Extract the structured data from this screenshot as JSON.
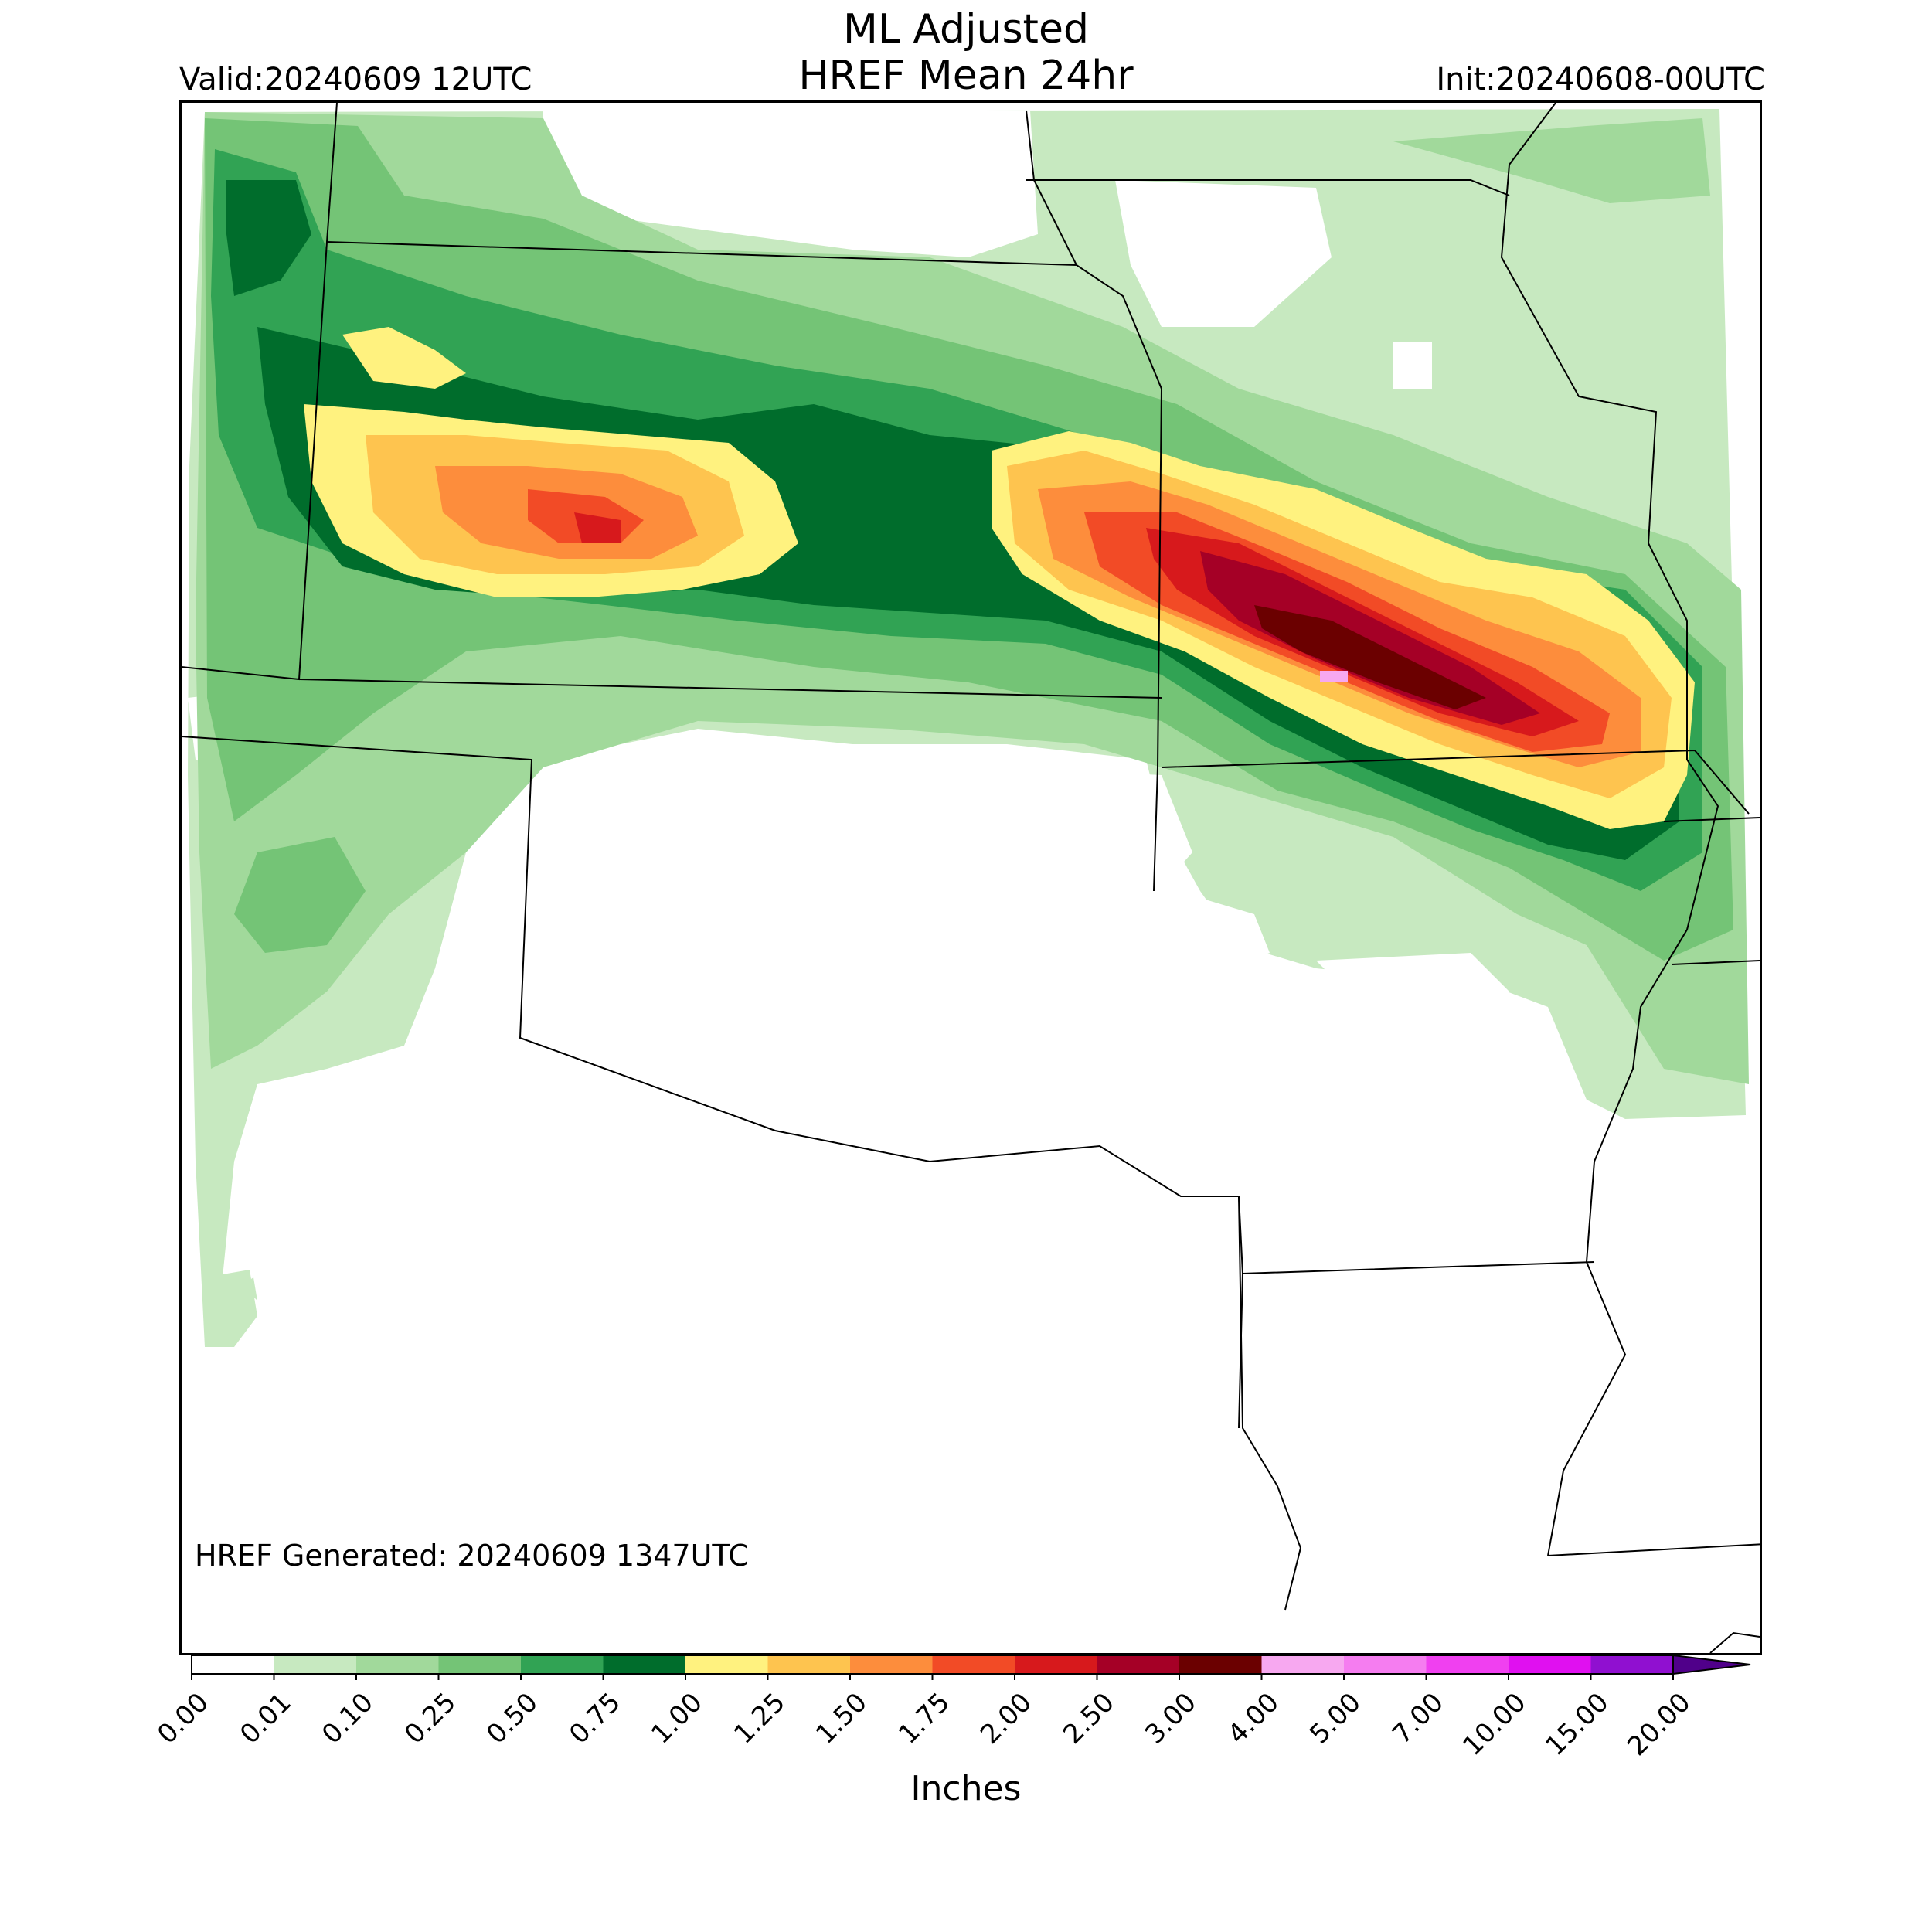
{
  "header": {
    "title_line1": "ML Adjusted",
    "title_line2": "HREF Mean 24hr",
    "valid": "Valid:20240609 12UTC",
    "init": "Init:20240608-00UTC"
  },
  "map": {
    "generated": "HREF Generated: 20240609 1347UTC",
    "field": "24hr mean precipitation"
  },
  "colorbar": {
    "unit": "Inches",
    "ticks": [
      "0.00",
      "0.01",
      "0.10",
      "0.25",
      "0.50",
      "0.75",
      "1.00",
      "1.25",
      "1.50",
      "1.75",
      "2.00",
      "2.50",
      "3.00",
      "4.00",
      "5.00",
      "7.00",
      "10.00",
      "15.00",
      "20.00"
    ],
    "colors": [
      "#ffffff",
      "#c7e9c0",
      "#a1d99b",
      "#74c476",
      "#31a354",
      "#006d2c",
      "#fff27f",
      "#fec44f",
      "#fd8d3c",
      "#f24b26",
      "#d7191c",
      "#a50026",
      "#6b0000",
      "#f7a8f0",
      "#f57df0",
      "#f040f0",
      "#e010f0",
      "#9010d0"
    ],
    "extend_color": "#50008a"
  }
}
